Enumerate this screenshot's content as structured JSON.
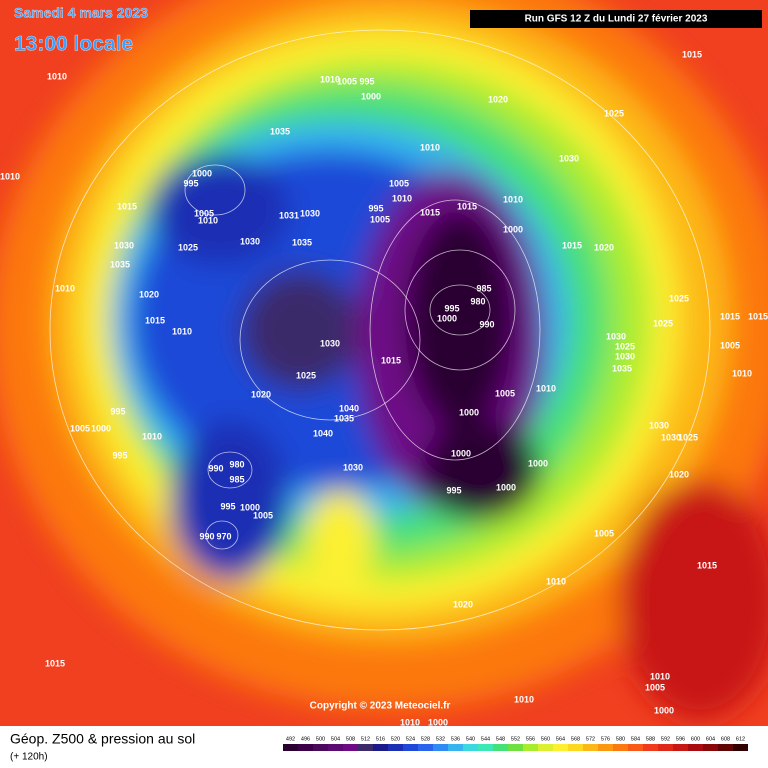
{
  "header": {
    "date": "Samedi 4 mars 2023",
    "time": "13:00 locale",
    "run": "Run GFS 12 Z du Lundi 27 février 2023"
  },
  "copyright": "Copyright © 2023 Meteociel.fr",
  "footer": {
    "title": "Géop. Z500 & pression au sol",
    "subtitle": "(+ 120h)"
  },
  "colorbar": {
    "labels": [
      492,
      496,
      500,
      504,
      508,
      512,
      516,
      520,
      524,
      528,
      532,
      536,
      540,
      544,
      548,
      552,
      556,
      560,
      564,
      568,
      572,
      576,
      580,
      584,
      588,
      592,
      596,
      600,
      604,
      608,
      612
    ],
    "colors": [
      "#2a0030",
      "#3c0048",
      "#4a0a5c",
      "#5a0a70",
      "#6e0a86",
      "#3a2a6a",
      "#1a1a8a",
      "#1c2fb4",
      "#1f48d8",
      "#2a64ee",
      "#2f8af4",
      "#35b4f0",
      "#3cd8e0",
      "#3ce8b4",
      "#46e078",
      "#6ee040",
      "#a8ec30",
      "#dcf030",
      "#fcf030",
      "#fcd820",
      "#fcb818",
      "#fc9810",
      "#fc7810",
      "#f85818",
      "#f03c1c",
      "#e02818",
      "#c81814",
      "#a80c10",
      "#880808",
      "#600404",
      "#300000"
    ]
  },
  "isobar_labels": [
    "1010",
    "1010",
    "1015",
    "1000",
    "995",
    "1005",
    "1010",
    "1035",
    "1010",
    "1005",
    "995",
    "1000",
    "1020",
    "1025",
    "1015",
    "1030",
    "1010",
    "1005",
    "1010",
    "995",
    "1005",
    "1015",
    "1015",
    "1010",
    "1000",
    "1015",
    "1020",
    "1031",
    "1030",
    "1030",
    "1035",
    "1025",
    "1030",
    "1035",
    "1010",
    "1020",
    "1015",
    "1010",
    "985",
    "980",
    "995",
    "1000",
    "990",
    "1030",
    "1015",
    "1025",
    "1020",
    "1010",
    "1005",
    "1000",
    "1040",
    "1035",
    "1040",
    "995",
    "1005",
    "1000",
    "1010",
    "995",
    "1000",
    "1000",
    "1000",
    "995",
    "980",
    "990",
    "985",
    "1030",
    "995",
    "1000",
    "1005",
    "990",
    "970",
    "1005",
    "1025",
    "1025",
    "1015",
    "1015",
    "1005",
    "1010",
    "1030",
    "1025",
    "1030",
    "1035",
    "1030",
    "1030",
    "1025",
    "1020",
    "1015",
    "1010",
    "1020",
    "1015",
    "1010",
    "1010",
    "1005",
    "1000",
    "1010",
    "1000"
  ]
}
